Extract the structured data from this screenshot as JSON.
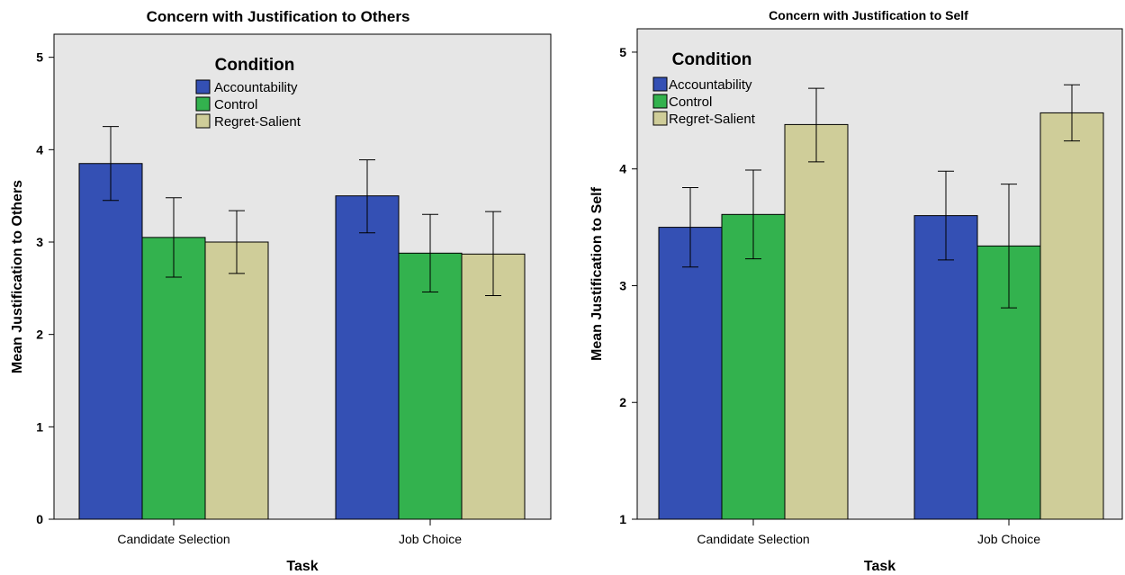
{
  "chart_data": [
    {
      "type": "bar",
      "title": "Concern with Justification to Others",
      "xlabel": "Task",
      "ylabel": "Mean Justification to Others",
      "ylim": [
        0,
        5.25
      ],
      "yticks": [
        "0",
        "1",
        "2",
        "3",
        "4",
        "5"
      ],
      "grid": false,
      "legend_title": "Condition",
      "legend_position": "top-center",
      "categories": [
        "Candidate Selection",
        "Job Choice"
      ],
      "series": [
        {
          "name": "Accountability",
          "color": "#3450b4",
          "values": [
            3.85,
            3.5
          ],
          "error_low": [
            3.45,
            3.1
          ],
          "error_high": [
            4.25,
            3.89
          ]
        },
        {
          "name": "Control",
          "color": "#33b24e",
          "values": [
            3.05,
            2.88
          ],
          "error_low": [
            2.62,
            2.46
          ],
          "error_high": [
            3.48,
            3.3
          ]
        },
        {
          "name": "Regret-Salient",
          "color": "#cfcd99",
          "values": [
            3.0,
            2.87
          ],
          "error_low": [
            2.66,
            2.42
          ],
          "error_high": [
            3.34,
            3.33
          ]
        }
      ]
    },
    {
      "type": "bar",
      "title": "Concern with Justification to Self",
      "xlabel": "Task",
      "ylabel": "Mean Justification to Self",
      "ylim": [
        1,
        5.2
      ],
      "yticks": [
        "1",
        "2",
        "3",
        "4",
        "5"
      ],
      "grid": false,
      "legend_title": "Condition",
      "legend_position": "top-left",
      "categories": [
        "Candidate Selection",
        "Job Choice"
      ],
      "series": [
        {
          "name": "Accountability",
          "color": "#3450b4",
          "values": [
            3.5,
            3.6
          ],
          "error_low": [
            3.16,
            3.22
          ],
          "error_high": [
            3.84,
            3.98
          ]
        },
        {
          "name": "Control",
          "color": "#33b24e",
          "values": [
            3.61,
            3.34
          ],
          "error_low": [
            3.23,
            2.81
          ],
          "error_high": [
            3.99,
            3.87
          ]
        },
        {
          "name": "Regret-Salient",
          "color": "#cfcd99",
          "values": [
            4.38,
            4.48
          ],
          "error_low": [
            4.06,
            4.24
          ],
          "error_high": [
            4.69,
            4.72
          ]
        }
      ]
    }
  ]
}
